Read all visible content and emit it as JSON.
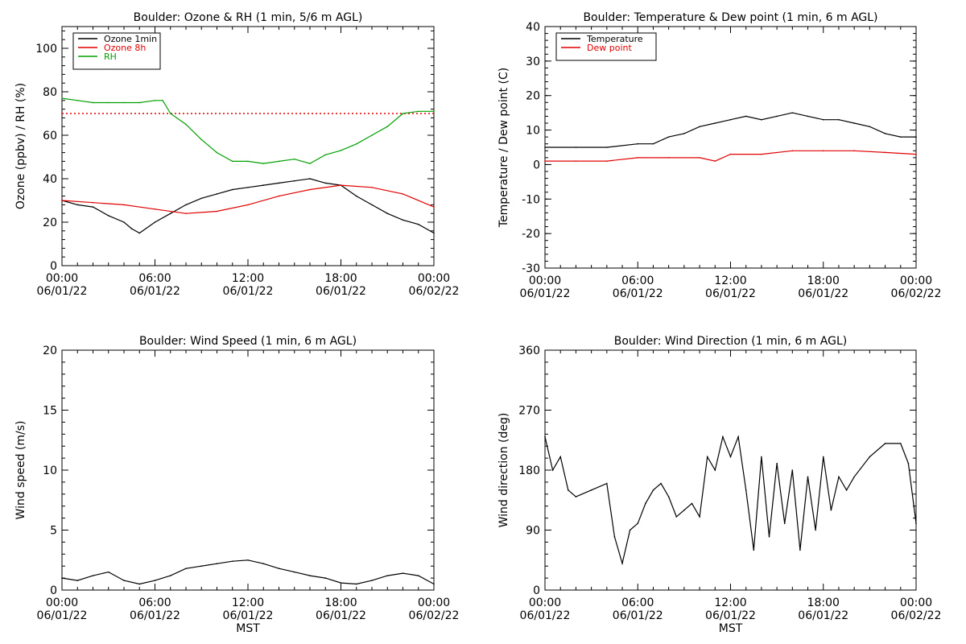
{
  "chart_data": [
    {
      "type": "line",
      "title": "Boulder: Ozone & RH (1 min, 5/6 m AGL)",
      "ylabel": "Ozone (ppbv) / RH (%)",
      "xlabel": "",
      "xlim": [
        0,
        24
      ],
      "ylim": [
        0,
        110
      ],
      "yticks": [
        0,
        20,
        40,
        60,
        80,
        100
      ],
      "xtick_labels": [
        [
          "00:00",
          "06/01/22"
        ],
        [
          "06:00",
          "06/01/22"
        ],
        [
          "12:00",
          "06/01/22"
        ],
        [
          "18:00",
          "06/01/22"
        ],
        [
          "00:00",
          "06/02/22"
        ]
      ],
      "legend_position": "top-left",
      "reference_line": {
        "y": 70,
        "style": "dotted",
        "color": "#e00000"
      },
      "series": [
        {
          "name": "Ozone 1min",
          "color": "#000000",
          "x": [
            0,
            1,
            2,
            3,
            4,
            4.5,
            5,
            6,
            7,
            8,
            9,
            10,
            11,
            12,
            13,
            14,
            15,
            16,
            17,
            18,
            19,
            20,
            21,
            22,
            23,
            24
          ],
          "y": [
            30,
            28,
            27,
            23,
            20,
            17,
            15,
            20,
            24,
            28,
            31,
            33,
            35,
            36,
            37,
            38,
            39,
            40,
            38,
            37,
            32,
            28,
            24,
            21,
            19,
            15
          ]
        },
        {
          "name": "Ozone 8h",
          "color": "#e00000",
          "x": [
            0,
            2,
            4,
            6,
            8,
            10,
            12,
            14,
            16,
            18,
            20,
            22,
            24
          ],
          "y": [
            30,
            29,
            28,
            26,
            24,
            25,
            28,
            32,
            35,
            37,
            36,
            33,
            27
          ]
        },
        {
          "name": "RH",
          "color": "#00a000",
          "x": [
            0,
            1,
            2,
            3,
            4,
            5,
            6,
            6.5,
            7,
            8,
            9,
            10,
            11,
            12,
            13,
            14,
            15,
            16,
            17,
            18,
            19,
            20,
            21,
            22,
            23,
            24
          ],
          "y": [
            77,
            76,
            75,
            75,
            75,
            75,
            76,
            76,
            70,
            65,
            58,
            52,
            48,
            48,
            47,
            48,
            49,
            47,
            51,
            53,
            56,
            60,
            64,
            70,
            71,
            71
          ]
        }
      ]
    },
    {
      "type": "line",
      "title": "Boulder: Temperature & Dew point (1 min, 6 m AGL)",
      "ylabel": "Temperature / Dew point (C)",
      "xlabel": "",
      "xlim": [
        0,
        24
      ],
      "ylim": [
        -30,
        40
      ],
      "yticks": [
        -30,
        -20,
        -10,
        0,
        10,
        20,
        30,
        40
      ],
      "xtick_labels": [
        [
          "00:00",
          "06/01/22"
        ],
        [
          "06:00",
          "06/01/22"
        ],
        [
          "12:00",
          "06/01/22"
        ],
        [
          "18:00",
          "06/01/22"
        ],
        [
          "00:00",
          "06/02/22"
        ]
      ],
      "legend_position": "top-left",
      "series": [
        {
          "name": "Temperature",
          "color": "#000000",
          "x": [
            0,
            2,
            4,
            6,
            7,
            8,
            9,
            10,
            11,
            12,
            13,
            14,
            15,
            16,
            17,
            18,
            19,
            20,
            21,
            22,
            23,
            24
          ],
          "y": [
            5,
            5,
            5,
            6,
            6,
            8,
            9,
            11,
            12,
            13,
            14,
            13,
            14,
            15,
            14,
            13,
            13,
            12,
            11,
            9,
            8,
            8
          ]
        },
        {
          "name": "Dew point",
          "color": "#e00000",
          "x": [
            0,
            2,
            4,
            6,
            8,
            10,
            11,
            12,
            14,
            16,
            18,
            20,
            22,
            24
          ],
          "y": [
            1,
            1,
            1,
            2,
            2,
            2,
            1,
            3,
            3,
            4,
            4,
            4,
            3.5,
            3
          ]
        }
      ]
    },
    {
      "type": "line",
      "title": "Boulder: Wind Speed (1 min, 6 m AGL)",
      "ylabel": "Wind speed (m/s)",
      "xlabel": "MST",
      "xlim": [
        0,
        24
      ],
      "ylim": [
        0,
        20
      ],
      "yticks": [
        0,
        5,
        10,
        15,
        20
      ],
      "xtick_labels": [
        [
          "00:00",
          "06/01/22"
        ],
        [
          "06:00",
          "06/01/22"
        ],
        [
          "12:00",
          "06/01/22"
        ],
        [
          "18:00",
          "06/01/22"
        ],
        [
          "00:00",
          "06/02/22"
        ]
      ],
      "series": [
        {
          "color": "#000000",
          "x": [
            0,
            1,
            2,
            3,
            4,
            5,
            6,
            7,
            8,
            9,
            10,
            11,
            12,
            13,
            14,
            15,
            16,
            17,
            18,
            19,
            20,
            21,
            22,
            23,
            24
          ],
          "y": [
            1,
            0.8,
            1.2,
            1.5,
            0.8,
            0.5,
            0.8,
            1.2,
            1.8,
            2,
            2.2,
            2.4,
            2.5,
            2.2,
            1.8,
            1.5,
            1.2,
            1.0,
            0.6,
            0.5,
            0.8,
            1.2,
            1.4,
            1.2,
            0.5
          ]
        }
      ]
    },
    {
      "type": "line",
      "title": "Boulder: Wind Direction (1 min, 6 m AGL)",
      "ylabel": "Wind direction (deg)",
      "xlabel": "MST",
      "xlim": [
        0,
        24
      ],
      "ylim": [
        0,
        360
      ],
      "yticks": [
        0,
        90,
        180,
        270,
        360
      ],
      "xtick_labels": [
        [
          "00:00",
          "06/01/22"
        ],
        [
          "06:00",
          "06/01/22"
        ],
        [
          "12:00",
          "06/01/22"
        ],
        [
          "18:00",
          "06/01/22"
        ],
        [
          "00:00",
          "06/02/22"
        ]
      ],
      "series": [
        {
          "color": "#000000",
          "x": [
            0,
            0.5,
            1,
            1.5,
            2,
            3,
            4,
            4.5,
            5,
            5.5,
            6,
            6.5,
            7,
            7.5,
            8,
            8.5,
            9,
            9.5,
            10,
            10.5,
            11,
            11.5,
            12,
            12.5,
            13,
            13.5,
            14,
            14.5,
            15,
            15.5,
            16,
            16.5,
            17,
            17.5,
            18,
            18.5,
            19,
            19.5,
            20,
            21,
            22,
            23,
            23.5,
            24
          ],
          "y": [
            230,
            180,
            200,
            150,
            140,
            150,
            160,
            80,
            40,
            90,
            100,
            130,
            150,
            160,
            140,
            110,
            120,
            130,
            110,
            200,
            180,
            230,
            200,
            230,
            150,
            60,
            200,
            80,
            190,
            100,
            180,
            60,
            170,
            90,
            200,
            120,
            170,
            150,
            170,
            200,
            220,
            220,
            190,
            100
          ]
        }
      ]
    }
  ]
}
